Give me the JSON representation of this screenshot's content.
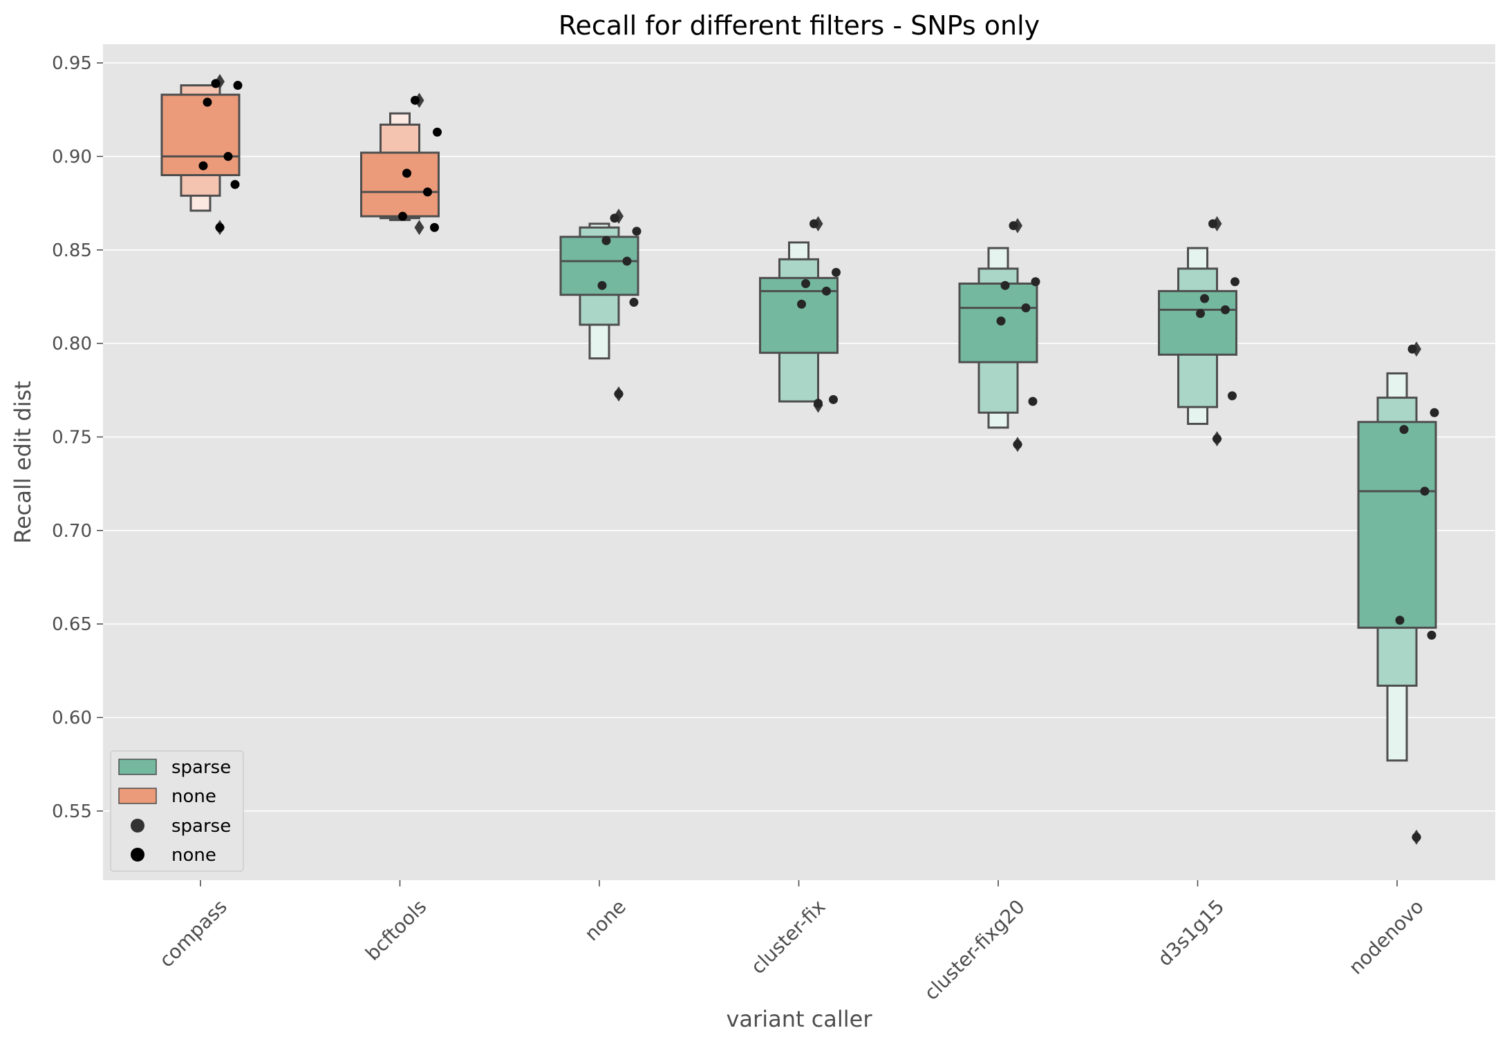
{
  "chart_data": {
    "type": "boxen",
    "title": "Recall for different filters - SNPs only",
    "xlabel": "variant caller",
    "ylabel": "Recall edit dist",
    "categories": [
      "compass",
      "bcftools",
      "none",
      "cluster-fix",
      "cluster-fixg20",
      "d3s1g15",
      "nodenovo"
    ],
    "ylim": [
      0.513,
      0.96
    ],
    "yticks": [
      0.55,
      0.6,
      0.65,
      0.7,
      0.75,
      0.8,
      0.85,
      0.9,
      0.95
    ],
    "ytick_labels": [
      "0.55",
      "0.60",
      "0.65",
      "0.70",
      "0.75",
      "0.80",
      "0.85",
      "0.90",
      "0.95"
    ],
    "grid": true,
    "legend": {
      "position": "lower-left",
      "entries": [
        {
          "label": "sparse",
          "kind": "patch",
          "color": "#74b8a0"
        },
        {
          "label": "none",
          "kind": "patch",
          "color": "#ec9b7a"
        },
        {
          "label": "sparse",
          "kind": "marker",
          "color": "#333333"
        },
        {
          "label": "none",
          "kind": "marker",
          "color": "#000000"
        }
      ]
    },
    "series": [
      {
        "category": "compass",
        "hue": "none",
        "median": 0.9,
        "boxes": [
          [
            0.89,
            0.933
          ],
          [
            0.879,
            0.938
          ],
          [
            0.871,
            0.938
          ]
        ],
        "outliers": [
          0.862,
          0.94
        ],
        "points": [
          0.939,
          0.938,
          0.929,
          0.9,
          0.895,
          0.885,
          0.862
        ]
      },
      {
        "category": "bcftools",
        "hue": "none",
        "median": 0.881,
        "boxes": [
          [
            0.868,
            0.902
          ],
          [
            0.867,
            0.917
          ],
          [
            0.866,
            0.923
          ]
        ],
        "outliers": [
          0.862,
          0.93
        ],
        "points": [
          0.93,
          0.913,
          0.891,
          0.881,
          0.868,
          0.862
        ]
      },
      {
        "category": "none",
        "hue": "sparse",
        "median": 0.844,
        "boxes": [
          [
            0.826,
            0.857
          ],
          [
            0.81,
            0.862
          ],
          [
            0.792,
            0.864
          ]
        ],
        "outliers": [
          0.773,
          0.868
        ],
        "points": [
          0.867,
          0.86,
          0.855,
          0.844,
          0.831,
          0.822,
          0.773
        ]
      },
      {
        "category": "cluster-fix",
        "hue": "sparse",
        "median": 0.828,
        "boxes": [
          [
            0.795,
            0.835
          ],
          [
            0.769,
            0.845
          ],
          [
            0.769,
            0.854
          ]
        ],
        "outliers": [
          0.767,
          0.864
        ],
        "points": [
          0.864,
          0.838,
          0.832,
          0.828,
          0.821,
          0.77,
          0.768
        ]
      },
      {
        "category": "cluster-fixg20",
        "hue": "sparse",
        "median": 0.819,
        "boxes": [
          [
            0.79,
            0.832
          ],
          [
            0.763,
            0.84
          ],
          [
            0.755,
            0.851
          ]
        ],
        "outliers": [
          0.746,
          0.863
        ],
        "points": [
          0.863,
          0.833,
          0.831,
          0.819,
          0.812,
          0.769,
          0.746
        ]
      },
      {
        "category": "d3s1g15",
        "hue": "sparse",
        "median": 0.818,
        "boxes": [
          [
            0.794,
            0.828
          ],
          [
            0.766,
            0.84
          ],
          [
            0.757,
            0.851
          ]
        ],
        "outliers": [
          0.749,
          0.864
        ],
        "points": [
          0.864,
          0.833,
          0.824,
          0.818,
          0.816,
          0.772,
          0.749
        ]
      },
      {
        "category": "nodenovo",
        "hue": "sparse",
        "median": 0.721,
        "boxes": [
          [
            0.648,
            0.758
          ],
          [
            0.617,
            0.771
          ],
          [
            0.577,
            0.784
          ]
        ],
        "outliers": [
          0.536,
          0.797
        ],
        "points": [
          0.797,
          0.763,
          0.754,
          0.721,
          0.652,
          0.644,
          0.536
        ]
      }
    ],
    "colors": {
      "panel_bg": "#e5e5e5",
      "grid": "#ffffff",
      "outline": "#4d4d4d",
      "sparse_levels": [
        "#74b8a0",
        "#aad6c8",
        "#e6f4f0"
      ],
      "none_levels": [
        "#ec9b7a",
        "#f4c4b0",
        "#fbe8e1"
      ]
    }
  }
}
